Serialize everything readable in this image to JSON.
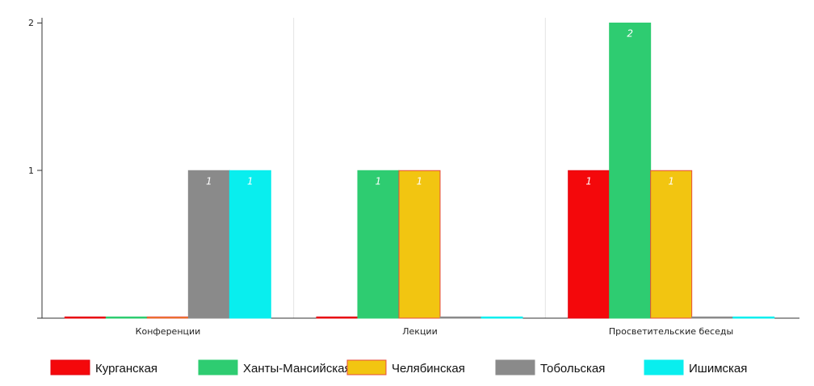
{
  "chart_data": {
    "type": "bar",
    "categories": [
      "Конференции",
      "Лекции",
      "Просветительские беседы"
    ],
    "series": [
      {
        "name": "Курганская",
        "color": "#f4080b",
        "border": "#e30512",
        "values": [
          0,
          0,
          1
        ]
      },
      {
        "name": "Ханты-Мансийская",
        "color": "#2ecc71",
        "border": "#2ecc71",
        "values": [
          0,
          1,
          2
        ]
      },
      {
        "name": "Челябинская",
        "color": "#f2c511",
        "border": "#e74c3c",
        "values": [
          0,
          1,
          1
        ]
      },
      {
        "name": "Тобольская",
        "color": "#8a8a8a",
        "border": "#8a8a8a",
        "values": [
          1,
          0,
          0
        ]
      },
      {
        "name": "Ишимская",
        "color": "#09eeee",
        "border": "#09eeee",
        "values": [
          1,
          0,
          0
        ]
      }
    ],
    "yticks": [
      "2",
      "1"
    ],
    "ylim": [
      0,
      2
    ],
    "xlabel": "",
    "ylabel": "",
    "title": "",
    "grid": "vertical",
    "legend": "bottom"
  }
}
